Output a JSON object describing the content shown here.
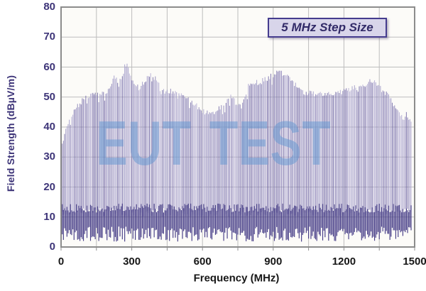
{
  "chart_data": {
    "type": "line",
    "style": "vertical-comb-emission-spectrum",
    "title": "",
    "xlabel": "Frequency (MHz)",
    "ylabel": "Field Strength (dBµV/m)",
    "watermark": "EUT TEST",
    "annotation": "5 MHz Step Size",
    "step_size_mhz": 5,
    "xlim": [
      0,
      1500
    ],
    "ylim": [
      0,
      80
    ],
    "x_tick_labels": [
      0,
      300,
      600,
      900,
      1200,
      1500
    ],
    "x_grid_step_mhz": 150,
    "y_tick_labels": [
      0,
      10,
      20,
      30,
      40,
      50,
      60,
      70,
      80
    ],
    "y_grid_step_db": 10,
    "grid": true,
    "legend": "none",
    "signal_range_mhz": [
      5,
      1485
    ],
    "noise_floor_db": {
      "solid_band_min": 6.8,
      "solid_band_max": 11.5,
      "spike_min": 1.8,
      "spike_top_max": 14.5
    },
    "envelope_x_mhz": [
      0,
      10,
      25,
      50,
      75,
      100,
      125,
      150,
      175,
      200,
      215,
      225,
      240,
      255,
      270,
      280,
      290,
      305,
      330,
      350,
      365,
      385,
      400,
      420,
      440,
      470,
      500,
      530,
      565,
      590,
      615,
      635,
      660,
      680,
      700,
      715,
      725,
      740,
      765,
      780,
      795,
      810,
      830,
      850,
      870,
      890,
      910,
      925,
      940,
      955,
      975,
      1000,
      1020,
      1040,
      1060,
      1080,
      1100,
      1120,
      1140,
      1160,
      1180,
      1200,
      1220,
      1240,
      1260,
      1280,
      1300,
      1320,
      1340,
      1360,
      1380,
      1400,
      1420,
      1440,
      1455,
      1465,
      1480,
      1500
    ],
    "envelope_db": [
      33,
      36,
      40.5,
      44.5,
      47.5,
      49.5,
      50.5,
      51,
      51,
      52,
      55,
      57.5,
      55.5,
      56,
      60,
      60.5,
      58,
      55.5,
      53,
      55,
      56.5,
      57.5,
      56,
      53.5,
      51.5,
      52,
      51,
      49.5,
      48,
      46,
      44.8,
      44.5,
      45.5,
      47,
      48.5,
      50,
      50.5,
      48,
      47,
      50,
      53.5,
      54.5,
      55,
      55.5,
      56,
      57,
      58,
      58.5,
      58,
      57,
      55.5,
      53.5,
      52,
      51,
      51.5,
      51,
      51.5,
      51,
      51.5,
      51,
      51.5,
      52,
      52.5,
      53.5,
      52.5,
      53.5,
      55,
      55.5,
      54,
      52.5,
      51,
      49,
      46.5,
      44.5,
      42.5,
      44.5,
      42,
      40
    ]
  },
  "colors": {
    "page_bg": "#ffffff",
    "plot_bg": "#fcfbf8",
    "grid": "#bdbdbd",
    "plot_border": "#8c8c8c",
    "comb_light_palette": [
      "#b3acd4",
      "#a09ac8",
      "#8b83b8",
      "#746ba8"
    ],
    "comb_dark": "#3a3080",
    "axis_text_navy": "#3d3478",
    "axis_text_black": "#171717",
    "annotation_bg": "#d8d5ea",
    "annotation_border": "#453c8e",
    "annotation_text": "#322b68",
    "watermark_blue": "#6598d2"
  }
}
